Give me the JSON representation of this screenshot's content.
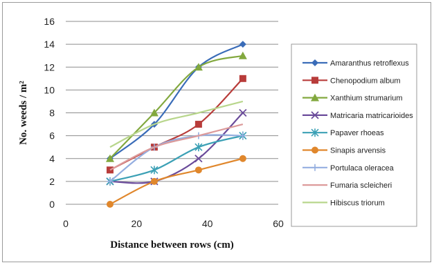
{
  "chart_data": {
    "type": "line",
    "title": "",
    "xlabel": "Distance between rows (cm)",
    "ylabel": "No. weeds / m²",
    "xlim": [
      0,
      60
    ],
    "ylim": [
      0,
      16
    ],
    "xticks": [
      0,
      20,
      40,
      60
    ],
    "yticks": [
      0,
      2,
      4,
      6,
      8,
      10,
      12,
      14,
      16
    ],
    "grid": "horizontal",
    "legend_position": "right",
    "x": [
      12.5,
      25,
      37.5,
      50
    ],
    "series": [
      {
        "name": "Amaranthus retroflexus",
        "values": [
          4,
          7,
          12,
          14
        ],
        "color": "#3a6cb8",
        "marker": "diamond"
      },
      {
        "name": "Chenopodium album",
        "values": [
          3,
          5,
          7,
          11
        ],
        "color": "#b83c3a",
        "marker": "square"
      },
      {
        "name": "Xanthium strumarium",
        "values": [
          4,
          8,
          12,
          13
        ],
        "color": "#82a83e",
        "marker": "triangle"
      },
      {
        "name": "Matricaria matricarioides",
        "values": [
          2,
          2,
          4,
          8
        ],
        "color": "#6a4b9a",
        "marker": "x"
      },
      {
        "name": "Papaver rhoeas",
        "values": [
          2,
          3,
          5,
          6
        ],
        "color": "#3ba0b5",
        "marker": "asterisk"
      },
      {
        "name": "Sinapis arvensis",
        "values": [
          0,
          2,
          3,
          4
        ],
        "color": "#e0872c",
        "marker": "circle"
      },
      {
        "name": "Portulaca oleracea",
        "values": [
          2,
          5,
          6,
          6
        ],
        "color": "#94aee0",
        "marker": "plus"
      },
      {
        "name": "Fumaria scleicheri",
        "values": [
          3,
          5,
          6,
          7
        ],
        "color": "#dc9a9a",
        "marker": "dash"
      },
      {
        "name": "Hibiscus triorum",
        "values": [
          5,
          7,
          8,
          9
        ],
        "color": "#b8d68c",
        "marker": "dash"
      }
    ]
  }
}
